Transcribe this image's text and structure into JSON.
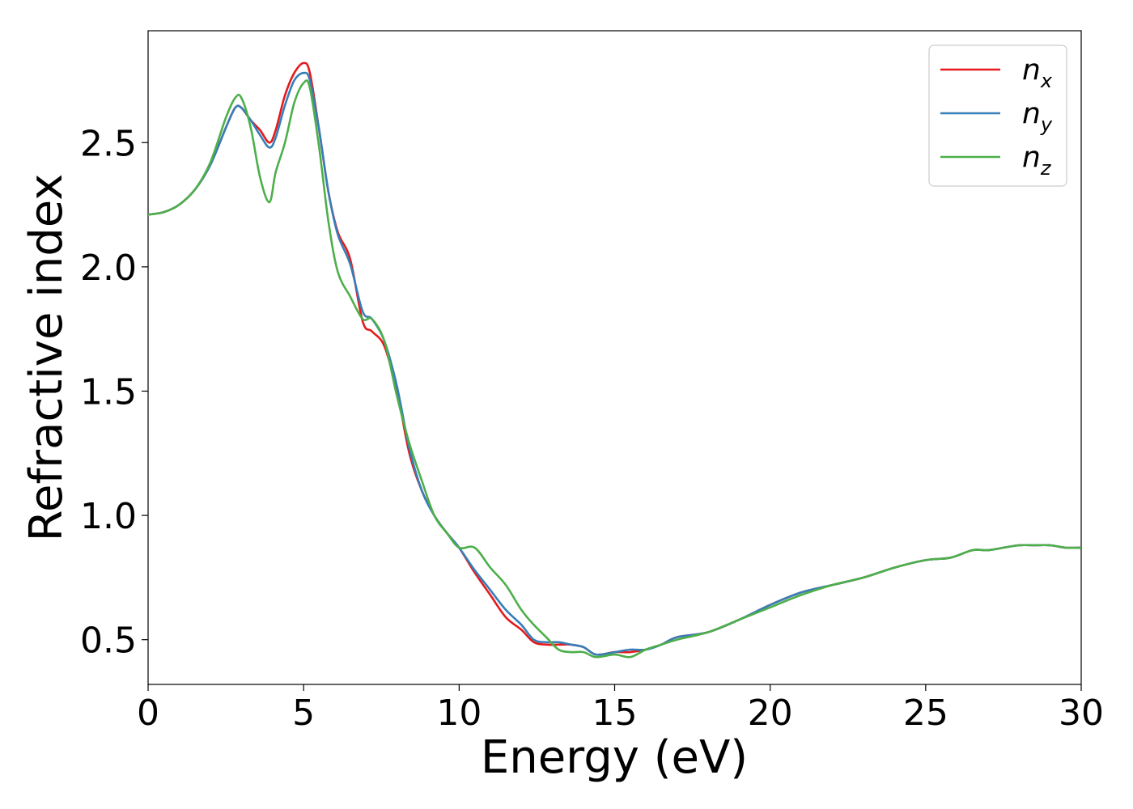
{
  "chart_data": {
    "type": "line",
    "title": "",
    "xlabel": "Energy (eV)",
    "ylabel": "Refractive index",
    "xlim": [
      0,
      30
    ],
    "ylim": [
      0.32,
      2.95
    ],
    "xticks": [
      0,
      5,
      10,
      15,
      20,
      25,
      30
    ],
    "xtick_labels": [
      "0",
      "5",
      "10",
      "15",
      "20",
      "25",
      "30"
    ],
    "yticks": [
      0.5,
      1.0,
      1.5,
      2.0,
      2.5
    ],
    "ytick_labels": [
      "0.5",
      "1.0",
      "1.5",
      "2.0",
      "2.5"
    ],
    "grid": false,
    "legend_position": "top-right",
    "series": [
      {
        "name": "n",
        "subscript": "x",
        "color": "#e41a1c",
        "x": [
          0,
          0.5,
          1,
          1.5,
          2,
          2.5,
          2.8,
          3,
          3.3,
          3.6,
          3.9,
          4.1,
          4.4,
          4.7,
          5,
          5.2,
          5.5,
          5.8,
          6.1,
          6.5,
          6.9,
          7.2,
          7.6,
          8,
          8.4,
          8.8,
          9.2,
          9.6,
          10,
          10.5,
          11,
          11.5,
          12,
          12.4,
          12.8,
          13.2,
          13.6,
          14,
          14.4,
          15,
          15.5,
          16,
          16.5,
          17,
          18,
          19,
          20,
          21,
          22,
          23,
          24,
          25,
          25.8,
          26.5,
          27,
          27.5,
          28,
          28.5,
          29,
          29.5,
          30
        ],
        "values": [
          2.21,
          2.22,
          2.25,
          2.31,
          2.41,
          2.56,
          2.64,
          2.64,
          2.59,
          2.55,
          2.5,
          2.55,
          2.69,
          2.78,
          2.82,
          2.78,
          2.55,
          2.3,
          2.14,
          2.03,
          1.78,
          1.74,
          1.68,
          1.5,
          1.25,
          1.1,
          1.0,
          0.93,
          0.87,
          0.77,
          0.68,
          0.59,
          0.54,
          0.49,
          0.48,
          0.48,
          0.48,
          0.47,
          0.44,
          0.45,
          0.45,
          0.46,
          0.48,
          0.51,
          0.53,
          0.58,
          0.64,
          0.69,
          0.72,
          0.75,
          0.79,
          0.82,
          0.83,
          0.86,
          0.86,
          0.87,
          0.88,
          0.88,
          0.88,
          0.87,
          0.87
        ]
      },
      {
        "name": "n",
        "subscript": "y",
        "color": "#377eb8",
        "x": [
          0,
          0.5,
          1,
          1.5,
          2,
          2.5,
          2.8,
          3,
          3.3,
          3.6,
          3.9,
          4.1,
          4.4,
          4.7,
          5,
          5.2,
          5.5,
          5.8,
          6.1,
          6.5,
          6.9,
          7.2,
          7.6,
          8,
          8.4,
          8.8,
          9.2,
          9.6,
          10,
          10.5,
          11,
          11.5,
          12,
          12.4,
          12.8,
          13.2,
          13.6,
          14,
          14.4,
          15,
          15.5,
          16,
          16.5,
          17,
          18,
          19,
          20,
          21,
          22,
          23,
          24,
          25,
          25.8,
          26.5,
          27,
          27.5,
          28,
          28.5,
          29,
          29.5,
          30
        ],
        "values": [
          2.21,
          2.22,
          2.25,
          2.31,
          2.41,
          2.56,
          2.64,
          2.64,
          2.59,
          2.53,
          2.48,
          2.52,
          2.65,
          2.75,
          2.78,
          2.75,
          2.55,
          2.3,
          2.13,
          2.01,
          1.82,
          1.79,
          1.7,
          1.52,
          1.27,
          1.1,
          1.0,
          0.93,
          0.87,
          0.78,
          0.7,
          0.62,
          0.56,
          0.5,
          0.49,
          0.49,
          0.48,
          0.47,
          0.44,
          0.45,
          0.46,
          0.46,
          0.48,
          0.51,
          0.53,
          0.58,
          0.64,
          0.69,
          0.72,
          0.75,
          0.79,
          0.82,
          0.83,
          0.86,
          0.86,
          0.87,
          0.88,
          0.88,
          0.88,
          0.87,
          0.87
        ]
      },
      {
        "name": "n",
        "subscript": "z",
        "color": "#4daf4a",
        "x": [
          0,
          0.5,
          1,
          1.5,
          2,
          2.5,
          2.8,
          3,
          3.3,
          3.6,
          3.9,
          4.1,
          4.4,
          4.7,
          5,
          5.2,
          5.5,
          5.8,
          6.1,
          6.5,
          6.9,
          7.2,
          7.6,
          8,
          8.4,
          8.8,
          9.2,
          9.6,
          10,
          10.5,
          11,
          11.5,
          12,
          12.4,
          12.8,
          13.2,
          13.6,
          14,
          14.4,
          15,
          15.5,
          16,
          16.5,
          17,
          18,
          19,
          20,
          21,
          22,
          23,
          24,
          25,
          25.8,
          26.5,
          27,
          27.5,
          28,
          28.5,
          29,
          29.5,
          30
        ],
        "values": [
          2.21,
          2.22,
          2.25,
          2.31,
          2.42,
          2.6,
          2.68,
          2.68,
          2.56,
          2.36,
          2.26,
          2.38,
          2.5,
          2.66,
          2.74,
          2.72,
          2.48,
          2.18,
          1.98,
          1.88,
          1.79,
          1.79,
          1.7,
          1.48,
          1.29,
          1.14,
          1.0,
          0.93,
          0.87,
          0.87,
          0.79,
          0.72,
          0.62,
          0.56,
          0.51,
          0.46,
          0.45,
          0.45,
          0.43,
          0.44,
          0.43,
          0.46,
          0.48,
          0.5,
          0.53,
          0.58,
          0.63,
          0.68,
          0.72,
          0.75,
          0.79,
          0.82,
          0.83,
          0.86,
          0.86,
          0.87,
          0.88,
          0.88,
          0.88,
          0.87,
          0.87
        ]
      }
    ]
  }
}
